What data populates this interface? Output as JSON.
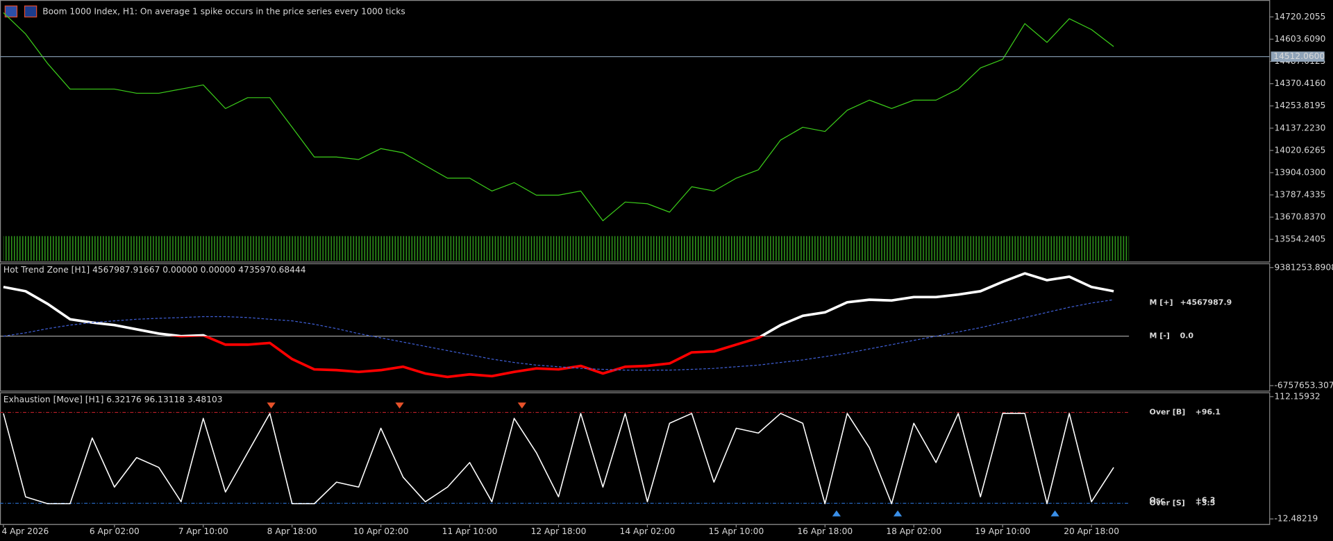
{
  "chart_data": [
    {
      "type": "line",
      "title": "Boom 1000 Index, H1:  On average 1 spike occurs in the price series every 1000 ticks",
      "categories": [
        "4 Apr 2026",
        null,
        null,
        null,
        null,
        "6 Apr 02:00",
        null,
        null,
        null,
        "7 Apr 10:00",
        null,
        null,
        null,
        "8 Apr 18:00",
        null,
        null,
        null,
        "10 Apr 02:00",
        null,
        null,
        null,
        "11 Apr 10:00",
        null,
        null,
        null,
        "12 Apr 18:00",
        null,
        null,
        null,
        "14 Apr 02:00",
        null,
        null,
        null,
        "15 Apr 10:00",
        null,
        null,
        null,
        "16 Apr 18:00",
        null,
        null,
        null,
        "18 Apr 02:00",
        null,
        null,
        null,
        "19 Apr 10:00",
        null,
        null,
        null,
        "20 Apr 18:00",
        null
      ],
      "series": [
        {
          "color": "#3ccf1a",
          "values": [
            14742,
            14631,
            14475,
            14342,
            14342,
            14342,
            14320,
            14320,
            14342,
            14364,
            14240,
            14297,
            14297,
            14142,
            13986,
            13986,
            13973,
            14030,
            14008,
            13941,
            13875,
            13875,
            13808,
            13852,
            13786,
            13786,
            13808,
            13652,
            13750,
            13741,
            13697,
            13830,
            13808,
            13875,
            13919,
            14075,
            14142,
            14120,
            14231,
            14284,
            14240,
            14284,
            14284,
            14342,
            14453,
            14498,
            14685,
            14587,
            14711,
            14654,
            14565
          ]
        }
      ],
      "ylim": [
        13438,
        14800
      ],
      "yticks": [
        14720.2055,
        {
          "value": 14603.609,
          "label": "14603.6090"
        },
        14487.0125,
        {
          "value": 14370.416,
          "label": "14370.4160"
        },
        14253.8195,
        {
          "value": 14137.223,
          "label": "14137.2230"
        },
        14020.6265,
        {
          "value": 13904.03,
          "label": "13904.0300"
        },
        13787.4335,
        {
          "value": 13670.837,
          "label": "13670.8370"
        },
        13554.2405
      ],
      "current_price": {
        "value": 14512.06,
        "label": "14512.0600"
      }
    },
    {
      "type": "line",
      "title": "Hot Trend Zone [H1] 4567987.91667 0.00000 0.00000 4735970.68444",
      "series": [
        {
          "color": "#ffffff",
          "negative_color": "#ff0000",
          "width": 3,
          "values": [
            6730000,
            6150000,
            4410000,
            2320000,
            1860000,
            1510000,
            930000,
            350000,
            0,
            120000,
            -1160000,
            -1160000,
            -930000,
            -3130000,
            -4530000,
            -4640000,
            -4880000,
            -4640000,
            -4180000,
            -5110000,
            -5570000,
            -5220000,
            -5460000,
            -4880000,
            -4410000,
            -4530000,
            -4060000,
            -5110000,
            -4180000,
            -4060000,
            -3720000,
            -2210000,
            -2090000,
            -1160000,
            -230000,
            1510000,
            2790000,
            3250000,
            4640000,
            4990000,
            4880000,
            5340000,
            5340000,
            5690000,
            6150000,
            7430000,
            8590000,
            7660000,
            8130000,
            6730000,
            6150000
          ]
        },
        {
          "color": "#3f5fd6",
          "dash": true,
          "width": 1,
          "values": [
            0,
            460000,
            1040000,
            1510000,
            1860000,
            2090000,
            2320000,
            2440000,
            2550000,
            2670000,
            2670000,
            2550000,
            2320000,
            2090000,
            1630000,
            1040000,
            350000,
            -230000,
            -810000,
            -1390000,
            -1970000,
            -2550000,
            -3130000,
            -3600000,
            -3950000,
            -4180000,
            -4410000,
            -4530000,
            -4640000,
            -4640000,
            -4640000,
            -4530000,
            -4410000,
            -4180000,
            -3950000,
            -3600000,
            -3250000,
            -2790000,
            -2320000,
            -1740000,
            -1160000,
            -580000,
            0,
            580000,
            1160000,
            1860000,
            2550000,
            3250000,
            3950000,
            4530000,
            4990000
          ]
        }
      ],
      "ylim": [
        -7450000,
        9850000
      ],
      "yticks": [
        9381253.89083,
        -6757653.3075
      ],
      "levels": [
        {
          "name": "M [+]",
          "value": 4567987.9,
          "label": "+4567987.9",
          "color": "#4d7dff",
          "line": false
        },
        {
          "name": "M [-]",
          "value": 0,
          "label": "0.0",
          "color": "#e0522b",
          "line": true,
          "line_color": "#b0b0b0"
        }
      ]
    },
    {
      "type": "line",
      "title": "Exhaustion [Move] [H1] 6.32176 96.13118 3.48103",
      "series": [
        {
          "color": "#ffffff",
          "width": 1.3,
          "values": [
            95,
            10,
            3,
            3,
            70,
            20,
            50,
            40,
            5,
            90,
            15,
            55,
            95,
            3,
            3,
            25,
            20,
            80,
            30,
            5,
            20,
            45,
            5,
            90,
            55,
            10,
            95,
            20,
            95,
            5,
            85,
            95,
            25,
            80,
            75,
            95,
            85,
            3,
            95,
            60,
            3,
            85,
            45,
            95,
            10,
            95,
            95,
            3,
            95,
            5,
            40
          ]
        }
      ],
      "ylim": [
        -17.67,
        115.62
      ],
      "yticks": [
        112.15932,
        -12.48219
      ],
      "levels": [
        {
          "name": "Over [B]",
          "value": 96.1,
          "label": "+96.1",
          "color": "#e0303a",
          "line": true,
          "line_color": "#c0202a"
        },
        {
          "name": "Osc",
          "value": 6.3,
          "label": "+6.3",
          "color": "#ffffff",
          "line": false
        },
        {
          "name": "Over [S]",
          "value": 3.5,
          "label": "+3.5",
          "color": "#3a7fe0",
          "line": true,
          "line_color": "#2a6fd0"
        }
      ]
    }
  ]
}
